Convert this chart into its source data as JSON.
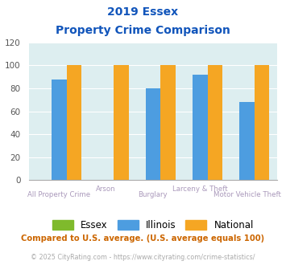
{
  "title_line1": "2019 Essex",
  "title_line2": "Property Crime Comparison",
  "categories": [
    "All Property Crime",
    "Arson",
    "Burglary",
    "Larceny & Theft",
    "Motor Vehicle Theft"
  ],
  "essex_values": [
    0,
    0,
    0,
    0,
    0
  ],
  "illinois_values": [
    88,
    0,
    80,
    92,
    68
  ],
  "national_values": [
    100,
    100,
    100,
    100,
    100
  ],
  "essex_color": "#7fba2c",
  "illinois_color": "#4d9de0",
  "national_color": "#f5a623",
  "ylim": [
    0,
    120
  ],
  "yticks": [
    0,
    20,
    40,
    60,
    80,
    100,
    120
  ],
  "bg_color": "#ddeef0",
  "title_color": "#1155bb",
  "label_color": "#aa99bb",
  "note_text": "Compared to U.S. average. (U.S. average equals 100)",
  "copyright_text": "© 2025 CityRating.com - https://www.cityrating.com/crime-statistics/",
  "note_color": "#cc6600",
  "copyright_color": "#aaaaaa",
  "legend_labels": [
    "Essex",
    "Illinois",
    "National"
  ]
}
